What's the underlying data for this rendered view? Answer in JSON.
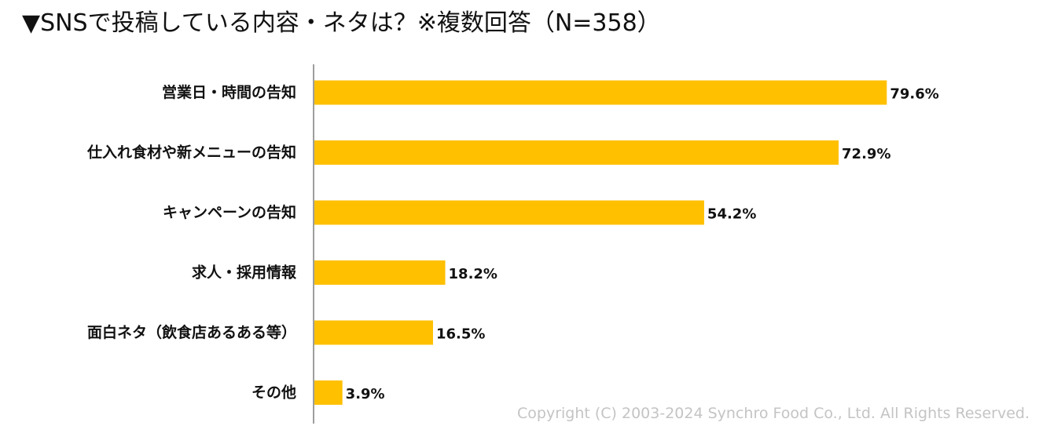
{
  "title": "▼SNSで投稿している内容・ネタは？※複数回答（N=358）",
  "copyright": "Copyright (C) 2003-2024  Synchro Food Co., Ltd. All Rights Reserved.",
  "colors": {
    "bar": "#FFC000",
    "axis": "#7f7f7f",
    "text": "#111111"
  },
  "chart_data": {
    "type": "bar",
    "orientation": "horizontal",
    "categories": [
      "営業日・時間の告知",
      "仕入れ食材や新メニューの告知",
      "キャンペーンの告知",
      "求人・採用情報",
      "面白ネタ（飲食店あるある等）",
      "その他"
    ],
    "values": [
      79.6,
      72.9,
      54.2,
      18.2,
      16.5,
      3.9
    ],
    "data_labels": [
      "79.6%",
      "72.9%",
      "54.2%",
      "18.2%",
      "16.5%",
      "3.9%"
    ],
    "unit": "%",
    "xlim": [
      0,
      100
    ],
    "grid": false,
    "legend": "none"
  }
}
